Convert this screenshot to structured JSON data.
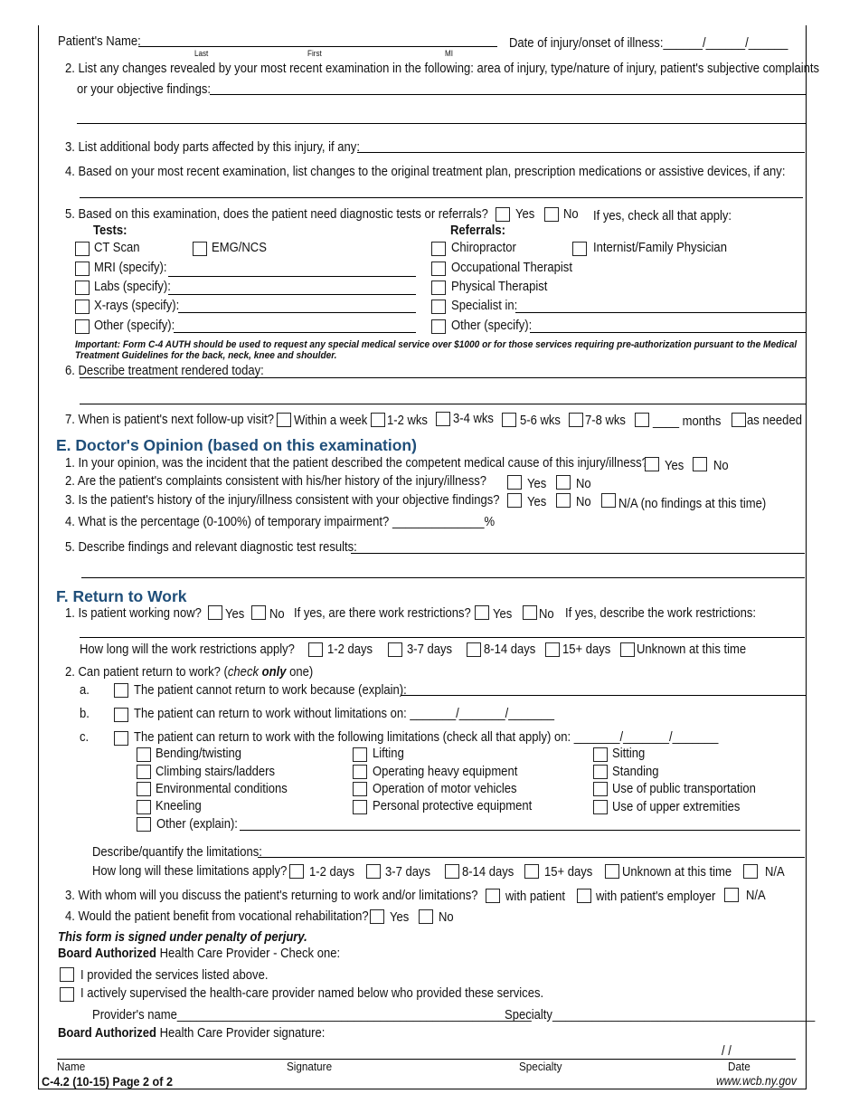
{
  "header": {
    "patient_name_label": "Patient's Name:",
    "last": "Last",
    "first": "First",
    "mi": "MI",
    "date_label": "Date of injury/onset of illness:______/______/______"
  },
  "q2": {
    "line1": "2. List any changes revealed by your most recent examination in the following: area of injury, type/nature of injury, patient's subjective complaints",
    "line2": "or your objective findings:"
  },
  "q3": "3. List additional body parts affected by this injury, if any:",
  "q4": "4. Based on your most recent examination, list changes to the original treatment plan, prescription medications or assistive devices, if any:",
  "q5": {
    "question": "5. Based on this examination, does the patient need diagnostic tests or referrals?",
    "yes": "Yes",
    "no": "No",
    "if_yes": "If yes, check all that apply:",
    "tests_label": "Tests:",
    "referrals_label": "Referrals:",
    "tests": [
      "CT Scan",
      "EMG/NCS",
      "MRI (specify):",
      "Labs (specify):",
      "X-rays (specify):",
      "Other (specify):"
    ],
    "referrals": [
      "Chiropractor",
      "Internist/Family Physician",
      "Occupational Therapist",
      "Physical Therapist",
      "Specialist in:",
      "Other (specify):"
    ]
  },
  "important": {
    "line1": "Important: Form C-4 AUTH should be used to request any special medical service over $1000 or for those services requiring pre-authorization pursuant to the Medical",
    "line2": "Treatment Guidelines for the back, neck, knee and shoulder."
  },
  "q6": "6. Describe treatment rendered today:",
  "q7": {
    "question": "7. When is patient's next follow-up visit?",
    "options": [
      "Within a week",
      "1-2 wks",
      "3-4 wks",
      "5-6 wks",
      "7-8 wks",
      "____ months",
      "as needed"
    ]
  },
  "section_e": {
    "title": "E. Doctor's Opinion (based on this examination)",
    "q1": "1. In your opinion, was the incident that the patient described the competent medical cause of this injury/illness?",
    "q2": "2. Are the patient's complaints consistent with his/her history of the injury/illness?",
    "q3": "3. Is the patient's history of the injury/illness consistent with your objective findings?",
    "q4": "4. What is the percentage (0-100%) of temporary impairment? ______________%",
    "q5": "5. Describe findings and relevant diagnostic test results:",
    "yes": "Yes",
    "no": "No",
    "na": "N/A (no findings at this time)"
  },
  "section_f": {
    "title": "F. Return to Work",
    "q1": "1. Is patient working now?",
    "yes": "Yes",
    "no": "No",
    "restrictions_q": "If yes, are there work restrictions?",
    "describe": "If yes, describe the work restrictions:",
    "how_long": "How long will the work restrictions apply?",
    "durations": [
      "1-2 days",
      "3-7 days",
      "8-14 days",
      "15+ days",
      "Unknown at this time"
    ],
    "q2_pre": "2. Can patient return to work? (",
    "q2_check": "check ",
    "q2_only": "only",
    "q2_post": " one)",
    "a_label": "a.",
    "a_text": "The patient cannot return to work because (explain):",
    "b_label": "b.",
    "b_text": "The patient can return to work without limitations on: _______/_______/_______",
    "c_label": "c.",
    "c_text": "The patient can return to work with the following limitations (check all that apply) on: _______/_______/_______",
    "limitations_col1": [
      "Bending/twisting",
      "Climbing stairs/ladders",
      "Environmental conditions",
      "Kneeling"
    ],
    "limitations_col2": [
      "Lifting",
      "Operating heavy equipment",
      "Operation of motor vehicles",
      "Personal protective equipment"
    ],
    "limitations_col3": [
      "Sitting",
      "Standing",
      "Use of public transportation",
      "Use of upper extremities"
    ],
    "other_explain": "Other (explain):",
    "describe_limitations": "Describe/quantify the limitations:",
    "how_long_limitations": "How long will these limitations apply?",
    "limit_durations": [
      "1-2 days",
      "3-7 days",
      "8-14 days",
      "15+ days",
      "Unknown at this time",
      "N/A"
    ],
    "q3": "3. With whom will you discuss the patient's returning to work and/or limitations?",
    "q3_options": [
      "with patient",
      "with patient's employer",
      "N/A"
    ],
    "q4": "4. Would the patient benefit from vocational rehabilitation?"
  },
  "signature": {
    "perjury": "This form is signed under penalty of perjury.",
    "board_authorized": "Board Authorized",
    "check_one": " Health Care Provider - Check one:",
    "opt1": "I provided the services listed above.",
    "opt2": "I actively supervised the health-care provider named below who provided these services.",
    "provider_name": "Provider's name______________________________________________________",
    "specialty": "Specialty________________________________________",
    "sig_label": " Health Care Provider signature:",
    "date_slashes": "/       /",
    "cols": [
      "Name",
      "Signature",
      "Specialty",
      "Date"
    ]
  },
  "footer": {
    "form_id": "C-4.2 (10-15)  Page 2 of 2",
    "website": "www.wcb.ny.gov"
  }
}
